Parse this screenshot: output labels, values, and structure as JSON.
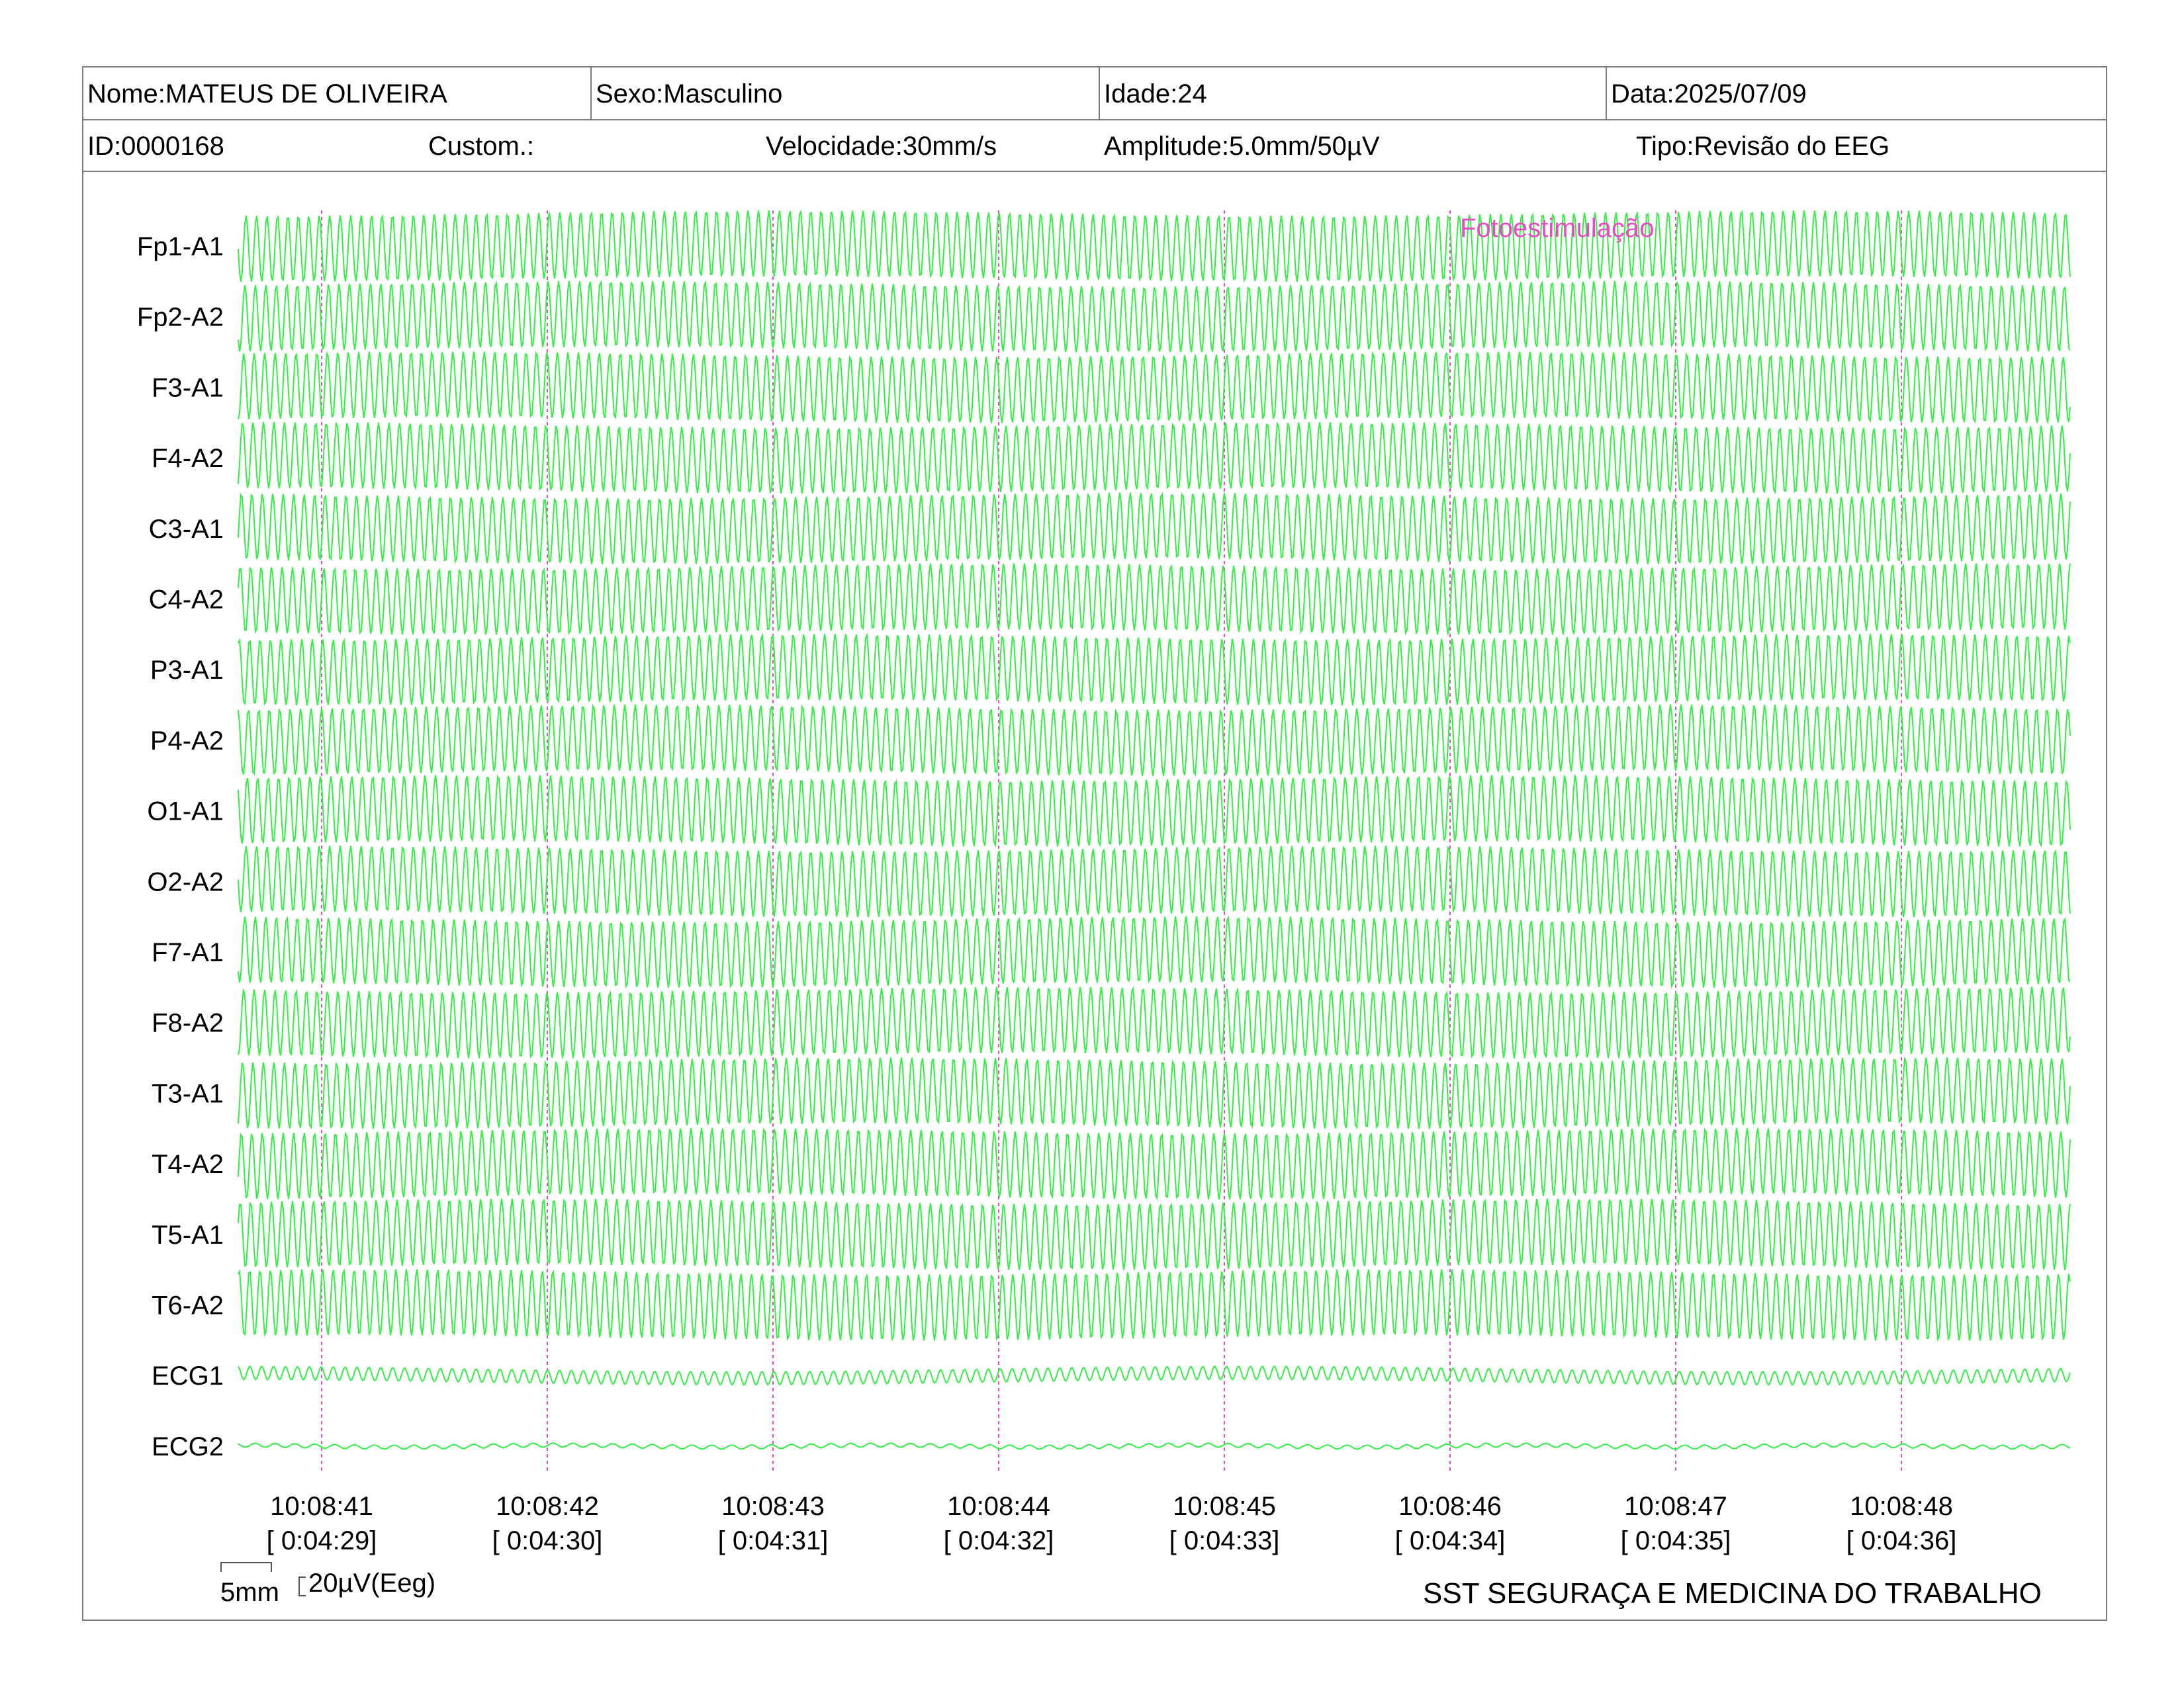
{
  "header": {
    "nome": "Nome:MATEUS DE OLIVEIRA",
    "sexo": "Sexo:Masculino",
    "idade": "Idade:24",
    "data": "Data:2025/07/09",
    "id": "ID:0000168",
    "custom": "Custom.:",
    "velocidade": "Velocidade:30mm/s",
    "amplitude": "Amplitude:5.0mm/50µV",
    "tipo": "Tipo:Revisão do EEG"
  },
  "channels": [
    "Fp1-A1",
    "Fp2-A2",
    "F3-A1",
    "F4-A2",
    "C3-A1",
    "C4-A2",
    "P3-A1",
    "P4-A2",
    "O1-A1",
    "O2-A2",
    "F7-A1",
    "F8-A2",
    "T3-A1",
    "T4-A2",
    "T5-A1",
    "T6-A2",
    "ECG1",
    "ECG2"
  ],
  "time_marks": [
    {
      "clock": "10:08:41",
      "elapsed": "[ 0:04:29]"
    },
    {
      "clock": "10:08:42",
      "elapsed": "[ 0:04:30]"
    },
    {
      "clock": "10:08:43",
      "elapsed": "[ 0:04:31]"
    },
    {
      "clock": "10:08:44",
      "elapsed": "[ 0:04:32]"
    },
    {
      "clock": "10:08:45",
      "elapsed": "[ 0:04:33]"
    },
    {
      "clock": "10:08:46",
      "elapsed": "[ 0:04:34]"
    },
    {
      "clock": "10:08:47",
      "elapsed": "[ 0:04:35]"
    },
    {
      "clock": "10:08:48",
      "elapsed": "[ 0:04:36]"
    }
  ],
  "event": {
    "label": "Fotoestimulação"
  },
  "scale": {
    "time": "5mm",
    "amplitude": "20µV(Eeg)"
  },
  "footer": {
    "organization": "SST SEGURAÇA E MEDICINA DO TRABALHO"
  },
  "colors": {
    "trace": "#33ee44",
    "marker": "#e64bc4",
    "border": "#7a7a7a"
  }
}
